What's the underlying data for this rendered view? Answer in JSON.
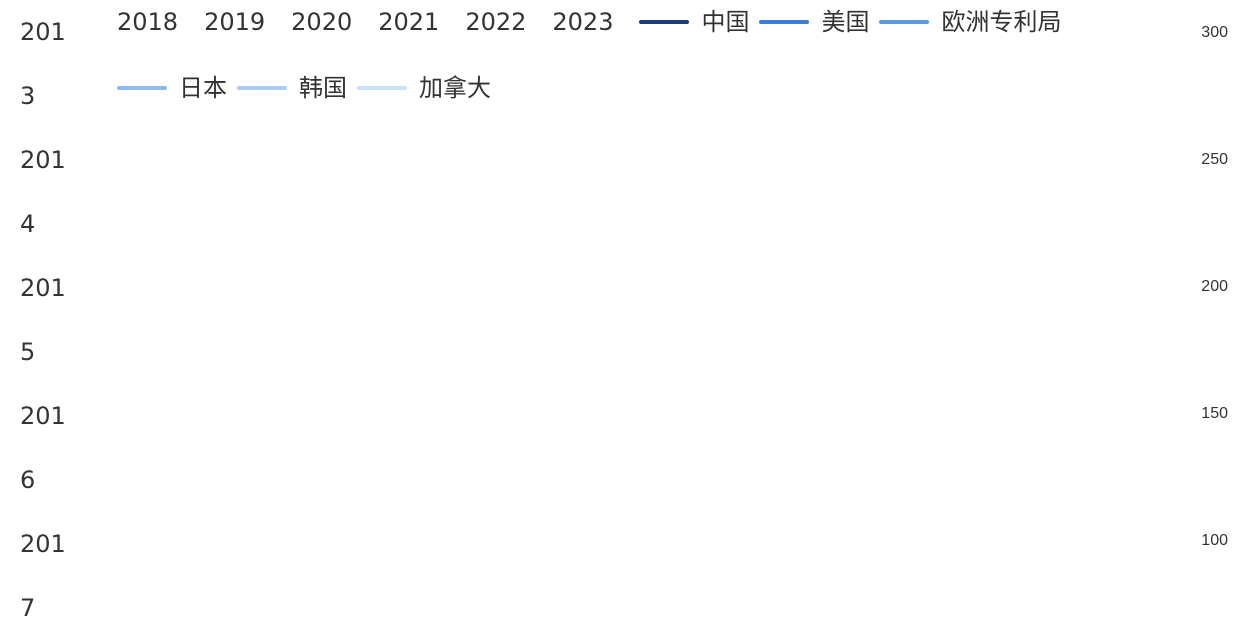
{
  "chart_data": {
    "type": "line",
    "categories": [
      "2013",
      "2014",
      "2015",
      "2016",
      "2017",
      "2018",
      "2019",
      "2020",
      "2021",
      "2022",
      "2023"
    ],
    "series": [
      {
        "name": "中国",
        "color": "#1f3a7a"
      },
      {
        "name": "美国",
        "color": "#3b7dd8"
      },
      {
        "name": "欧洲专利局",
        "color": "#5b9ae0"
      },
      {
        "name": "日本",
        "color": "#8dbaf0"
      },
      {
        "name": "韩国",
        "color": "#a9cdf4"
      },
      {
        "name": "加拿大",
        "color": "#c8e0f8"
      }
    ],
    "ylim": [
      100,
      300
    ],
    "yticks": [
      100,
      150,
      200,
      250,
      300
    ]
  }
}
